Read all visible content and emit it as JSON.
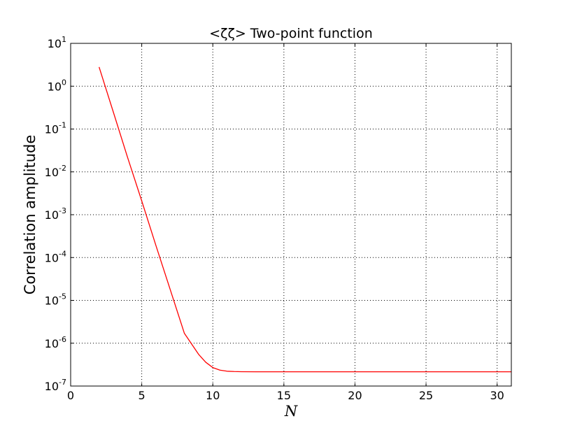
{
  "chart_data": {
    "type": "line",
    "title": "<ζζ> Two-point function",
    "xlabel": "N",
    "ylabel": "Correlation amplitude",
    "xlim": [
      0,
      31
    ],
    "ylim": [
      1e-07,
      10
    ],
    "yscale": "log",
    "grid": true,
    "x_ticks": [
      "0",
      "5",
      "10",
      "15",
      "20",
      "25",
      "30"
    ],
    "y_ticks": [
      {
        "base": "10",
        "exp": "1"
      },
      {
        "base": "10",
        "exp": "0"
      },
      {
        "base": "10",
        "exp": "-1"
      },
      {
        "base": "10",
        "exp": "-2"
      },
      {
        "base": "10",
        "exp": "-3"
      },
      {
        "base": "10",
        "exp": "-4"
      },
      {
        "base": "10",
        "exp": "-5"
      },
      {
        "base": "10",
        "exp": "-6"
      },
      {
        "base": "10",
        "exp": "-7"
      }
    ],
    "series": [
      {
        "color": "#ff0000",
        "x": [
          2,
          3,
          4,
          5,
          6,
          7,
          8,
          9,
          9.5,
          10,
          10.5,
          11,
          11.5,
          12,
          13,
          15,
          20,
          25,
          31
        ],
        "y": [
          2.8,
          0.25,
          0.022,
          0.0021,
          0.00019,
          1.8e-05,
          1.7e-06,
          5.5e-07,
          3.6e-07,
          2.7e-07,
          2.35e-07,
          2.22e-07,
          2.18e-07,
          2.16e-07,
          2.15e-07,
          2.15e-07,
          2.15e-07,
          2.15e-07,
          2.15e-07
        ]
      }
    ]
  }
}
